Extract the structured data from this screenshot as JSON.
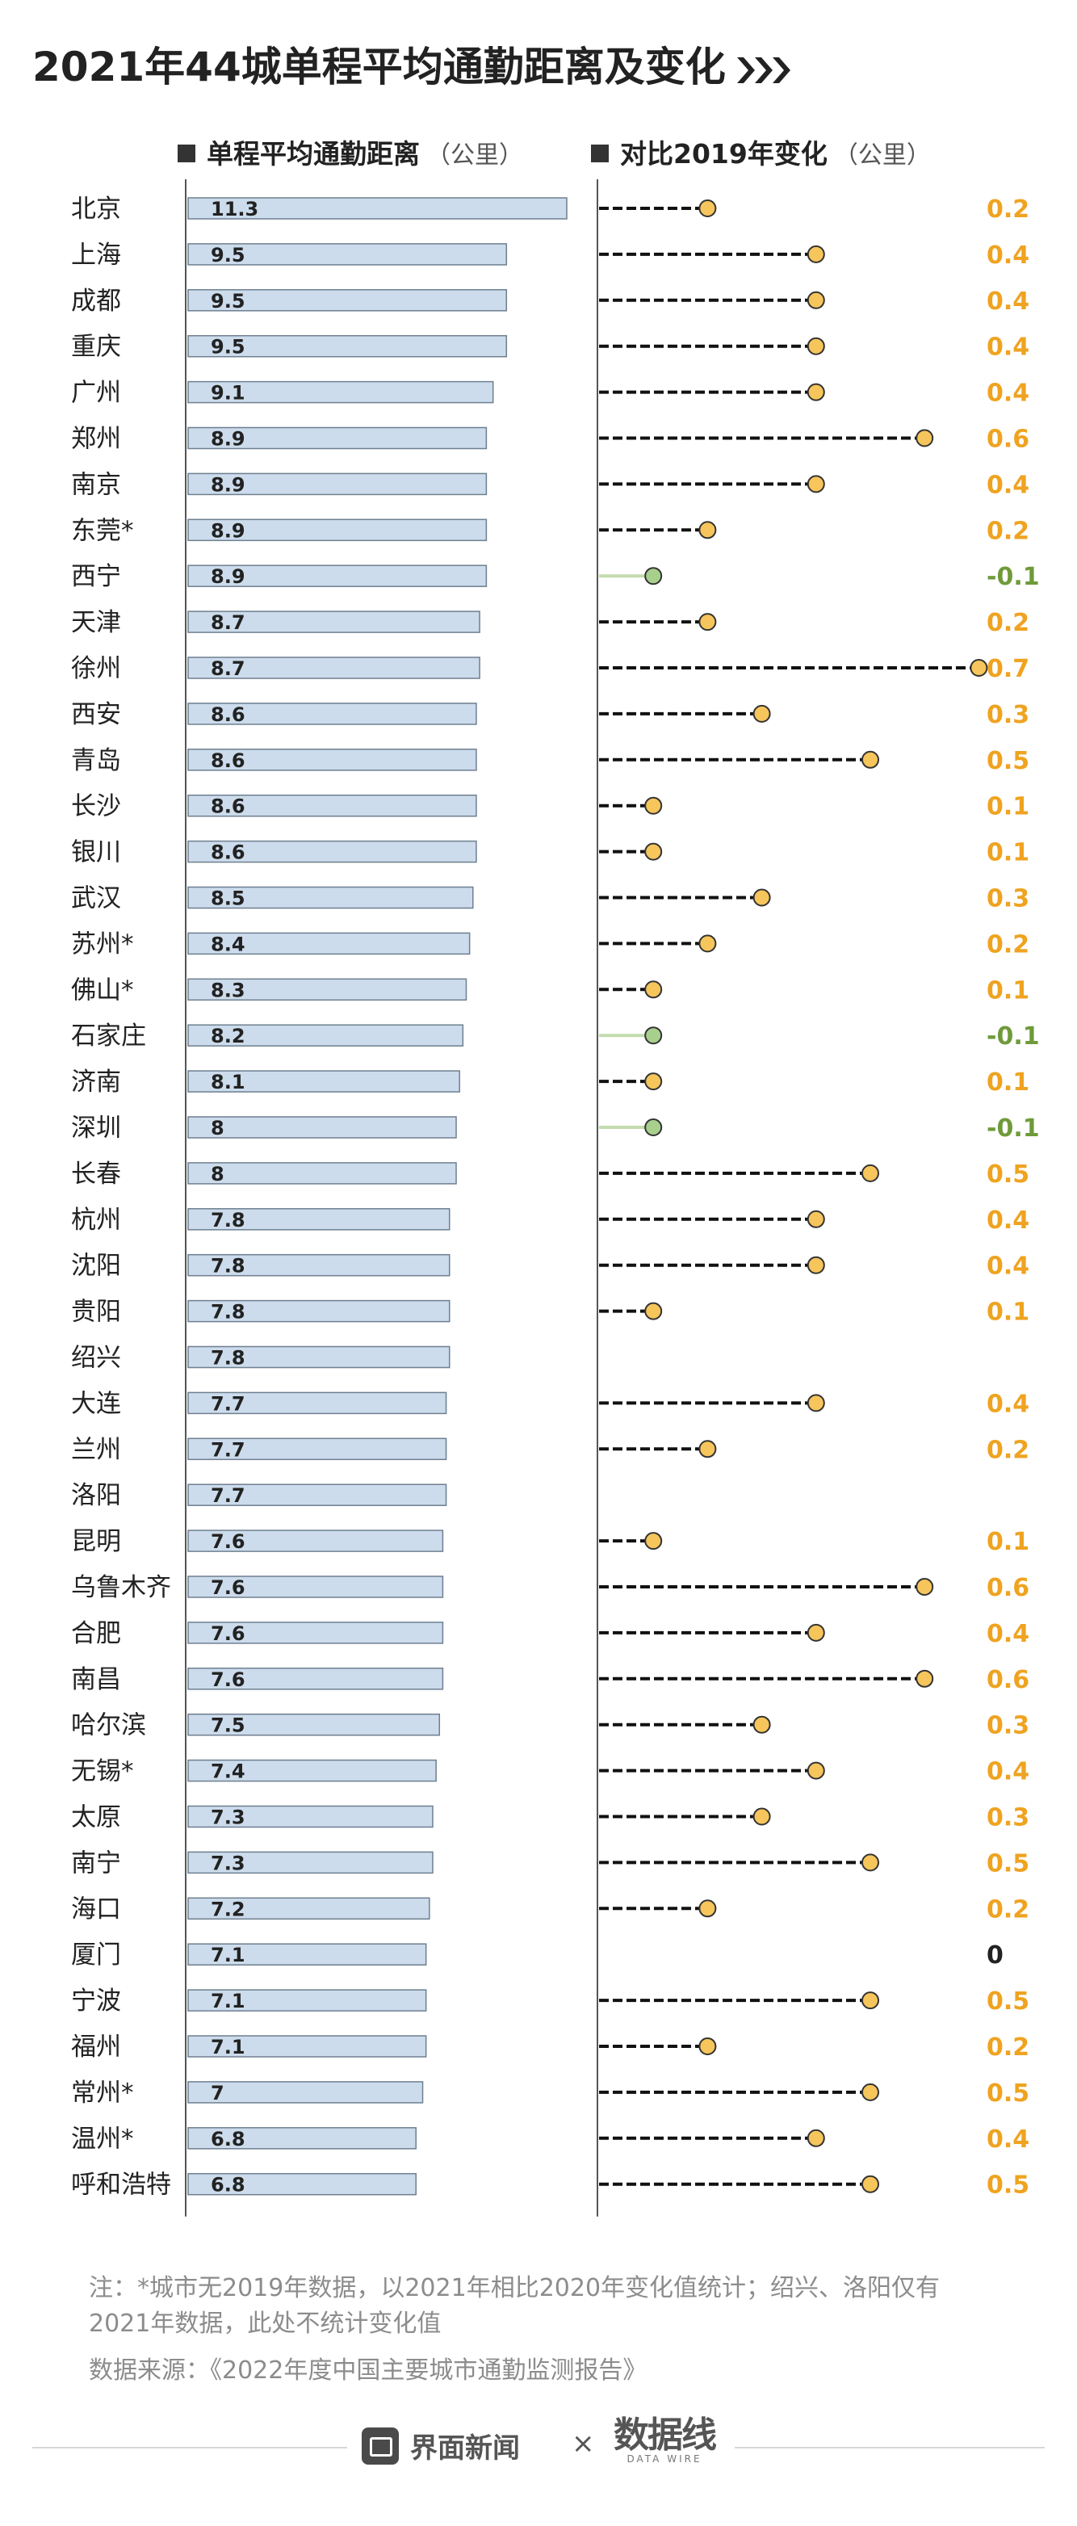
{
  "title": "2021年44城单程平均通勤距离及变化",
  "legend": {
    "distance_label": "单程平均通勤距离",
    "distance_unit": "（公里）",
    "change_label": "对比2019年变化",
    "change_unit": "（公里）"
  },
  "chart_data": {
    "type": "bar",
    "title": "2021年44城单程平均通勤距离及变化",
    "categories": [
      "北京",
      "上海",
      "成都",
      "重庆",
      "广州",
      "郑州",
      "南京",
      "东莞*",
      "西宁",
      "天津",
      "徐州",
      "西安",
      "青岛",
      "长沙",
      "银川",
      "武汉",
      "苏州*",
      "佛山*",
      "石家庄",
      "济南",
      "深圳",
      "长春",
      "杭州",
      "沈阳",
      "贵阳",
      "绍兴",
      "大连",
      "兰州",
      "洛阳",
      "昆明",
      "乌鲁木齐",
      "合肥",
      "南昌",
      "哈尔滨",
      "无锡*",
      "太原",
      "南宁",
      "海口",
      "厦门",
      "宁波",
      "福州",
      "常州*",
      "温州*",
      "呼和浩特"
    ],
    "series": [
      {
        "name": "单程平均通勤距离",
        "unit": "公里",
        "values": [
          "11.3",
          "9.5",
          "9.5",
          "9.5",
          "9.1",
          "8.9",
          "8.9",
          "8.9",
          "8.9",
          "8.7",
          "8.7",
          "8.6",
          "8.6",
          "8.6",
          "8.6",
          "8.5",
          "8.4",
          "8.3",
          "8.2",
          "8.1",
          "8",
          "8",
          "7.8",
          "7.8",
          "7.8",
          "7.8",
          "7.7",
          "7.7",
          "7.7",
          "7.6",
          "7.6",
          "7.6",
          "7.6",
          "7.5",
          "7.4",
          "7.3",
          "7.3",
          "7.2",
          "7.1",
          "7.1",
          "7.1",
          "7",
          "6.8",
          "6.8"
        ]
      },
      {
        "name": "对比2019年变化",
        "unit": "公里",
        "values": [
          "0.2",
          "0.4",
          "0.4",
          "0.4",
          "0.4",
          "0.6",
          "0.4",
          "0.2",
          "-0.1",
          "0.2",
          "0.7",
          "0.3",
          "0.5",
          "0.1",
          "0.1",
          "0.3",
          "0.2",
          "0.1",
          "-0.1",
          "0.1",
          "-0.1",
          "0.5",
          "0.4",
          "0.4",
          "0.1",
          null,
          "0.4",
          "0.2",
          null,
          "0.1",
          "0.6",
          "0.4",
          "0.6",
          "0.3",
          "0.4",
          "0.3",
          "0.5",
          "0.2",
          "0",
          "0.5",
          "0.2",
          "0.5",
          "0.4",
          "0.5"
        ]
      }
    ],
    "colors": {
      "bar_fill": "#ccdcec",
      "bar_stroke": "#6e7f90",
      "positive_dot": "#f6c55b",
      "positive_label": "#efa320",
      "negative_dot": "#a8d08d",
      "negative_line": "#c3dcae",
      "negative_label": "#6f9a3a",
      "zero_label": "#222222",
      "axis": "#555555"
    }
  },
  "notes": [
    "注：*城市无2019年数据，以2021年相比2020年变化值统计；绍兴、洛阳仅有",
    "2021年数据，此处不统计变化值",
    "数据来源：《2022年度中国主要城市通勤监测报告》"
  ],
  "footer": {
    "brand": "界面新闻",
    "times": "×",
    "partner": "数据线",
    "partner_sub": "DATA WIRE"
  }
}
